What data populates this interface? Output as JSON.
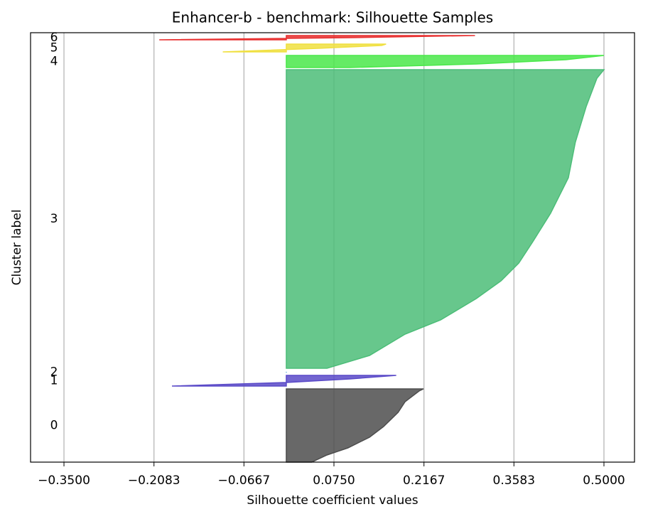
{
  "chart_data": {
    "type": "silhouette",
    "title": "Enhancer-b - benchmark: Silhouette Samples",
    "xlabel": "Silhouette coefficient values",
    "ylabel": "Cluster label",
    "xlim": [
      -0.4026,
      0.5481
    ],
    "ylim": [
      0,
      604
    ],
    "xticks": [
      {
        "value": -0.35,
        "label": "−0.3500"
      },
      {
        "value": -0.2083,
        "label": "−0.2083"
      },
      {
        "value": -0.0667,
        "label": "−0.0667"
      },
      {
        "value": 0.075,
        "label": "0.0750"
      },
      {
        "value": 0.2167,
        "label": "0.2167"
      },
      {
        "value": 0.3583,
        "label": "0.3583"
      },
      {
        "value": 0.5,
        "label": "0.5000"
      }
    ],
    "grid": true,
    "series": [
      {
        "name": "0",
        "color": "#4d4d4d",
        "y": [
          0,
          10,
          20,
          35,
          50,
          70,
          85,
          100,
          103
        ],
        "values": [
          0.04,
          0.064,
          0.097,
          0.131,
          0.153,
          0.176,
          0.187,
          0.209,
          0.216
        ]
      },
      {
        "name": "1",
        "color": "#5a4ac8",
        "y": [
          107,
          112,
          117,
          122
        ],
        "values": [
          -0.18,
          0.0,
          0.1,
          0.173
        ]
      },
      {
        "name": "2",
        "color": "#4da6d4",
        "y": [
          126,
          127
        ],
        "values": [
          0.0,
          0.0
        ]
      },
      {
        "name": "3",
        "color": "#4cbd78",
        "y": [
          132,
          150,
          180,
          200,
          230,
          255,
          280,
          310,
          350,
          400,
          450,
          500,
          540,
          552
        ],
        "values": [
          0.064,
          0.131,
          0.187,
          0.243,
          0.299,
          0.338,
          0.366,
          0.388,
          0.416,
          0.444,
          0.455,
          0.472,
          0.489,
          0.5
        ]
      },
      {
        "name": "4",
        "color": "#4ae84a",
        "y": [
          555,
          560,
          566,
          572
        ],
        "values": [
          0.1,
          0.3,
          0.44,
          0.5
        ]
      },
      {
        "name": "5",
        "color": "#f0e040",
        "y": [
          577,
          582,
          586,
          588
        ],
        "values": [
          -0.1,
          0.05,
          0.15,
          0.157
        ]
      },
      {
        "name": "6",
        "color": "#e83030",
        "y": [
          594,
          597,
          600
        ],
        "values": [
          -0.2,
          0.1,
          0.297
        ]
      }
    ]
  }
}
